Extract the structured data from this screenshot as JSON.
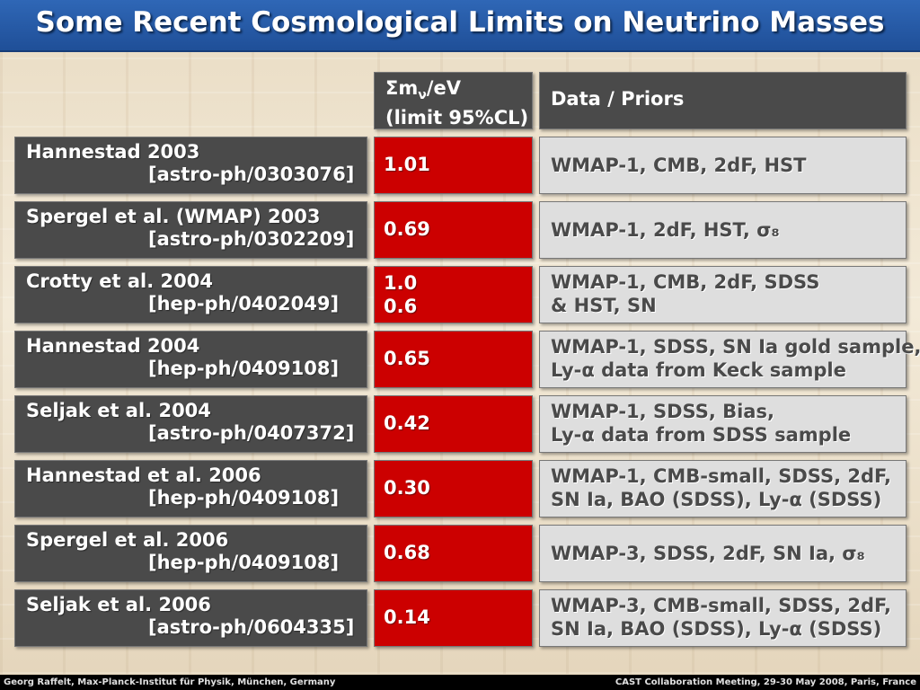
{
  "title": "Some Recent Cosmological Limits on Neutrino Masses",
  "header": {
    "sum_prefix": "Σm",
    "sum_sub": "ν",
    "sum_suffix": "/eV",
    "sum_line2": "(limit 95%CL)",
    "data_label": "Data / Priors"
  },
  "rows": [
    {
      "name": "Hannestad 2003",
      "ref": "[astro-ph/0303076]",
      "limits": [
        "1.01"
      ],
      "data": [
        "WMAP-1, CMB, 2dF, HST"
      ]
    },
    {
      "name": "Spergel et al. (WMAP) 2003",
      "ref": "[astro-ph/0302209]",
      "limits": [
        "0.69"
      ],
      "data": [
        "WMAP-1, 2dF, HST, σ₈"
      ]
    },
    {
      "name": "Crotty et al. 2004",
      "ref": "[hep-ph/0402049]",
      "limits": [
        "1.0",
        "0.6"
      ],
      "data": [
        "WMAP-1, CMB, 2dF, SDSS",
        "& HST, SN"
      ]
    },
    {
      "name": "Hannestad 2004",
      "ref": "[hep-ph/0409108]",
      "limits": [
        "0.65"
      ],
      "data": [
        "WMAP-1, SDSS, SN Ia gold sample,",
        "Ly-α data from Keck sample"
      ]
    },
    {
      "name": "Seljak et al. 2004",
      "ref": "[astro-ph/0407372]",
      "limits": [
        "0.42"
      ],
      "data": [
        "WMAP-1, SDSS, Bias,",
        "Ly-α data from SDSS sample"
      ]
    },
    {
      "name": "Hannestad et al. 2006",
      "ref": "[hep-ph/0409108]",
      "limits": [
        "0.30"
      ],
      "data": [
        "WMAP-1, CMB-small, SDSS, 2dF,",
        "SN Ia, BAO (SDSS), Ly-α (SDSS)"
      ]
    },
    {
      "name": "Spergel et al. 2006",
      "ref": "[hep-ph/0409108]",
      "limits": [
        "0.68"
      ],
      "data": [
        "WMAP-3, SDSS, 2dF, SN Ia, σ₈"
      ]
    },
    {
      "name": "Seljak et al. 2006",
      "ref": "[astro-ph/0604335]",
      "limits": [
        "0.14"
      ],
      "data": [
        "WMAP-3, CMB-small, SDSS, 2dF,",
        "SN Ia, BAO (SDSS), Ly-α (SDSS)"
      ]
    }
  ],
  "footer": {
    "left": "Georg Raffelt, Max-Planck-Institut für Physik, München, Germany",
    "right": "CAST Collaboration Meeting, 29-30 May 2008, Paris, France"
  },
  "colors": {
    "title_bar": "#2a5fab",
    "ref_box": "#4a4a4a",
    "limit_box": "#cc0000",
    "data_box": "#dedede"
  }
}
